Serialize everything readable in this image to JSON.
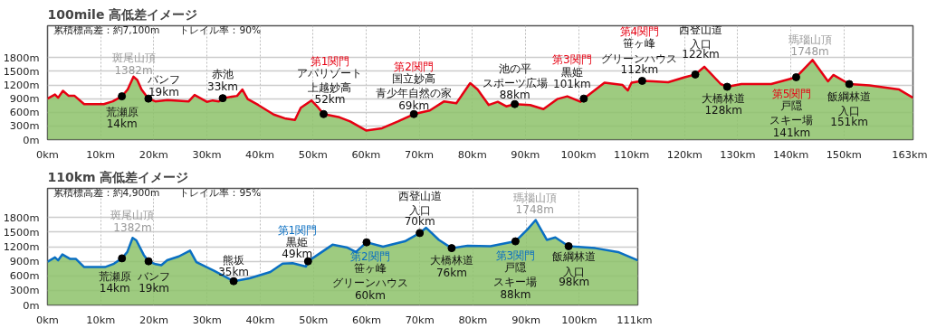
{
  "chart_data": [
    {
      "type": "area",
      "title": "100mile 高低差イメージ",
      "subtitle": "累積標高差：約7,100m　　トレイル率：90%",
      "x": [
        0,
        1.4,
        2,
        2.9,
        4,
        5.1,
        6.9,
        10.6,
        12.3,
        14,
        15.1,
        16.2,
        16.9,
        17.7,
        19,
        20.3,
        22.6,
        26.6,
        27.7,
        30,
        31.1,
        32.3,
        33,
        35.7,
        36.7,
        37.7,
        39.7,
        42.6,
        44.9,
        46.6,
        47.7,
        49.7,
        51,
        52,
        55,
        57,
        60,
        63,
        66,
        69,
        72,
        74.7,
        77,
        79.6,
        81,
        83.1,
        84.8,
        86.4,
        88,
        90.9,
        93.4,
        96,
        97.9,
        100.4,
        101,
        104.9,
        108.3,
        109.3,
        110,
        112,
        114,
        116.9,
        120,
        122,
        123.7,
        126.8,
        128,
        130.7,
        136.3,
        141,
        144.1,
        147,
        148,
        151,
        154.8,
        160.4,
        163
      ],
      "series": [
        {
          "color": "#8dc26a",
          "values": [
            900,
            990,
            920,
            1070,
            960,
            960,
            780,
            780,
            840,
            950,
            1100,
            1382,
            1310,
            1100,
            900,
            840,
            870,
            840,
            980,
            830,
            860,
            840,
            910,
            960,
            1100,
            890,
            760,
            550,
            460,
            430,
            700,
            860,
            700,
            560,
            490,
            400,
            200,
            250,
            400,
            560,
            640,
            840,
            800,
            1240,
            1100,
            760,
            830,
            730,
            780,
            760,
            670,
            890,
            950,
            830,
            900,
            1250,
            1200,
            1080,
            1250,
            1290,
            1280,
            1260,
            1370,
            1430,
            1600,
            1220,
            1160,
            1220,
            1220,
            1370,
            1748,
            1280,
            1420,
            1220,
            1190,
            1100,
            920
          ]
        },
        {
          "type": "line",
          "color": "#e60012",
          "values": [
            900,
            990,
            920,
            1070,
            960,
            960,
            780,
            780,
            840,
            950,
            1100,
            1382,
            1310,
            1100,
            900,
            840,
            870,
            840,
            980,
            830,
            860,
            840,
            910,
            960,
            1100,
            890,
            760,
            550,
            460,
            430,
            700,
            860,
            700,
            560,
            490,
            400,
            200,
            250,
            400,
            560,
            640,
            840,
            800,
            1240,
            1100,
            760,
            830,
            730,
            780,
            760,
            670,
            890,
            950,
            830,
            900,
            1250,
            1200,
            1080,
            1250,
            1290,
            1280,
            1260,
            1370,
            1430,
            1600,
            1220,
            1160,
            1220,
            1220,
            1370,
            1748,
            1280,
            1420,
            1220,
            1190,
            1100,
            920
          ]
        },
        {
          "type": "scatter",
          "color": "#000000",
          "marker": "circle",
          "x": [
            14,
            19,
            33,
            52,
            69,
            88,
            101,
            112,
            122,
            128,
            141,
            151
          ],
          "values": [
            950,
            900,
            910,
            560,
            560,
            780,
            900,
            1290,
            1430,
            1160,
            1370,
            1220
          ]
        }
      ],
      "xlim": [
        0,
        163
      ],
      "ylim": [
        0,
        2500
      ],
      "xticks": [
        {
          "value": 0,
          "label": "0km"
        },
        {
          "value": 10,
          "label": "10km"
        },
        {
          "value": 20,
          "label": "20km"
        },
        {
          "value": 30,
          "label": "30km"
        },
        {
          "value": 40,
          "label": "40km"
        },
        {
          "value": 50,
          "label": "50km"
        },
        {
          "value": 60,
          "label": "60km"
        },
        {
          "value": 70,
          "label": "70km"
        },
        {
          "value": 80,
          "label": "80km"
        },
        {
          "value": 90,
          "label": "90km"
        },
        {
          "value": 100,
          "label": "100km"
        },
        {
          "value": 110,
          "label": "110km"
        },
        {
          "value": 120,
          "label": "120km"
        },
        {
          "value": 130,
          "label": "130km"
        },
        {
          "value": 140,
          "label": "140km"
        },
        {
          "value": 150,
          "label": "150km"
        },
        {
          "value": 163,
          "label": "163km"
        }
      ],
      "yticks": [
        {
          "value": 0,
          "label": "0m"
        },
        {
          "value": 300,
          "label": "300m"
        },
        {
          "value": 600,
          "label": "600m"
        },
        {
          "value": 900,
          "label": "900m"
        },
        {
          "value": 1200,
          "label": "1200m"
        },
        {
          "value": 1500,
          "label": "1500m"
        },
        {
          "value": 1800,
          "label": "1800m"
        }
      ],
      "grid": true,
      "annotations": [
        {
          "text": "斑尾山頂",
          "x": 16.2,
          "y": 1382
        },
        {
          "text": "1382m",
          "x": 16.2,
          "y": 1382
        },
        {
          "text": "荒瀬原",
          "x": 14,
          "y": 950
        },
        {
          "text": "14km",
          "x": 14,
          "y": 950
        },
        {
          "text": "バンフ",
          "x": 19,
          "y": 900
        },
        {
          "text": "19km",
          "x": 19,
          "y": 900
        },
        {
          "text": "赤池",
          "x": 33,
          "y": 910
        },
        {
          "text": "33km",
          "x": 33,
          "y": 910
        },
        "第1関門",
        {
          "text": "アパリゾート上越妙高",
          "x": 52,
          "y": 560
        },
        "52km",
        "第2関門",
        {
          "text": "国立妙高青少年自然の家",
          "x": 69,
          "y": 560
        },
        "69km",
        {
          "text": "池の平スポーツ広場",
          "x": 88,
          "y": 780
        },
        {
          "text": "88km",
          "x": 88,
          "y": 780
        },
        "第3関門",
        {
          "text": "黒姫",
          "x": 101,
          "y": 900
        },
        {
          "text": "101km",
          "x": 101,
          "y": 900
        },
        "第4関門",
        {
          "text": "笹ヶ峰グリーンハウス",
          "x": 112,
          "y": 1290
        },
        {
          "text": "112km",
          "x": 112,
          "y": 1290
        },
        {
          "text": "西登山道入口",
          "x": 122,
          "y": 1430
        },
        {
          "text": "122km",
          "x": 122,
          "y": 1430
        },
        {
          "text": "大橋林道",
          "x": 128,
          "y": 1160
        },
        {
          "text": "128km",
          "x": 128,
          "y": 1160
        },
        {
          "text": "瑪瑙山頂",
          "x": 144.1,
          "y": 1748
        },
        {
          "text": "1748m",
          "x": 144.1,
          "y": 1748
        },
        "第5関門",
        {
          "text": "戸隠スキー場",
          "x": 141,
          "y": 1370
        },
        "141km",
        {
          "text": "飯綱林道入口",
          "x": 151,
          "y": 1220
        },
        {
          "text": "151km",
          "x": 151,
          "y": 1220
        }
      ]
    },
    {
      "type": "area",
      "title": "110km 高低差イメージ",
      "subtitle": "累積標高差：約4,900m　　トレイル率：95%",
      "x": [
        0,
        1.4,
        2,
        2.8,
        4.2,
        5.3,
        6.9,
        10.8,
        12.5,
        14,
        15,
        16,
        16.7,
        18.1,
        19,
        20.3,
        21.4,
        22.5,
        24.7,
        26.8,
        28,
        31.4,
        35,
        38,
        41.9,
        44.2,
        46.1,
        48.6,
        49,
        53.6,
        56.4,
        58,
        60,
        63.1,
        67.2,
        70,
        71.2,
        73.6,
        76,
        79,
        83.3,
        88,
        90.3,
        91.8,
        93.9,
        95.5,
        98,
        103,
        107.3,
        111
      ],
      "series": [
        {
          "color": "#8dc26a",
          "values": [
            890,
            980,
            920,
            1040,
            950,
            950,
            780,
            780,
            850,
            960,
            1090,
            1382,
            1330,
            1030,
            900,
            840,
            820,
            920,
            1000,
            1120,
            880,
            700,
            490,
            550,
            680,
            850,
            860,
            790,
            900,
            1240,
            1180,
            1090,
            1290,
            1200,
            1310,
            1480,
            1590,
            1340,
            1170,
            1220,
            1210,
            1310,
            1560,
            1748,
            1340,
            1390,
            1210,
            1170,
            1090,
            920
          ]
        },
        {
          "type": "line",
          "color": "#0a6fc2",
          "values": [
            890,
            980,
            920,
            1040,
            950,
            950,
            780,
            780,
            850,
            960,
            1090,
            1382,
            1330,
            1030,
            900,
            840,
            820,
            920,
            1000,
            1120,
            880,
            700,
            490,
            550,
            680,
            850,
            860,
            790,
            900,
            1240,
            1180,
            1090,
            1290,
            1200,
            1310,
            1480,
            1590,
            1340,
            1170,
            1220,
            1210,
            1310,
            1560,
            1748,
            1340,
            1390,
            1210,
            1170,
            1090,
            920
          ]
        },
        {
          "type": "scatter",
          "color": "#000000",
          "marker": "circle",
          "x": [
            14,
            19,
            35,
            49,
            60,
            70,
            76,
            88,
            98
          ],
          "values": [
            960,
            900,
            490,
            900,
            1290,
            1480,
            1170,
            1310,
            1210
          ]
        }
      ],
      "xlim": [
        0,
        111
      ],
      "ylim": [
        0,
        2400
      ],
      "xticks": [
        {
          "value": 0,
          "label": "0km"
        },
        {
          "value": 10,
          "label": "10km"
        },
        {
          "value": 20,
          "label": "20km"
        },
        {
          "value": 30,
          "label": "30km"
        },
        {
          "value": 40,
          "label": "40km"
        },
        {
          "value": 50,
          "label": "50km"
        },
        {
          "value": 60,
          "label": "60km"
        },
        {
          "value": 70,
          "label": "70km"
        },
        {
          "value": 80,
          "label": "80km"
        },
        {
          "value": 90,
          "label": "90km"
        },
        {
          "value": 100,
          "label": "100km"
        },
        {
          "value": 111,
          "label": "111km"
        }
      ],
      "yticks": [
        {
          "value": 0,
          "label": "0m"
        },
        {
          "value": 300,
          "label": "300m"
        },
        {
          "value": 600,
          "label": "600m"
        },
        {
          "value": 900,
          "label": "900m"
        },
        {
          "value": 1200,
          "label": "1200m"
        },
        {
          "value": 1500,
          "label": "1500m"
        },
        {
          "value": 1800,
          "label": "1800m"
        }
      ],
      "grid": true,
      "annotations": [
        {
          "text": "斑尾山頂",
          "x": 16,
          "y": 1382
        },
        {
          "text": "1382m",
          "x": 16,
          "y": 1382
        },
        {
          "text": "荒瀬原",
          "x": 14,
          "y": 960
        },
        {
          "text": "14km",
          "x": 14,
          "y": 960
        },
        {
          "text": "バンフ",
          "x": 19,
          "y": 900
        },
        {
          "text": "19km",
          "x": 19,
          "y": 900
        },
        {
          "text": "熊坂",
          "x": 35,
          "y": 490
        },
        {
          "text": "35km",
          "x": 35,
          "y": 490
        },
        "第1関門",
        {
          "text": "黒姫",
          "x": 49,
          "y": 900
        },
        {
          "text": "49km",
          "x": 49,
          "y": 900
        },
        "第2関門",
        {
          "text": "笹ヶ峰グリーンハウス",
          "x": 60,
          "y": 1290
        },
        "60km",
        {
          "text": "西登山道入口",
          "x": 70,
          "y": 1480
        },
        {
          "text": "70km",
          "x": 70,
          "y": 1480
        },
        {
          "text": "大橋林道",
          "x": 76,
          "y": 1170
        },
        {
          "text": "76km",
          "x": 76,
          "y": 1170
        },
        {
          "text": "瑪瑙山頂",
          "x": 91.8,
          "y": 1748
        },
        {
          "text": "1748m",
          "x": 91.8,
          "y": 1748
        },
        "第3関門",
        {
          "text": "戸隠スキー場",
          "x": 88,
          "y": 1310
        },
        "88km",
        {
          "text": "飯綱林道入口",
          "x": 98,
          "y": 1210
        },
        {
          "text": "98km",
          "x": 98,
          "y": 1210
        }
      ]
    }
  ]
}
